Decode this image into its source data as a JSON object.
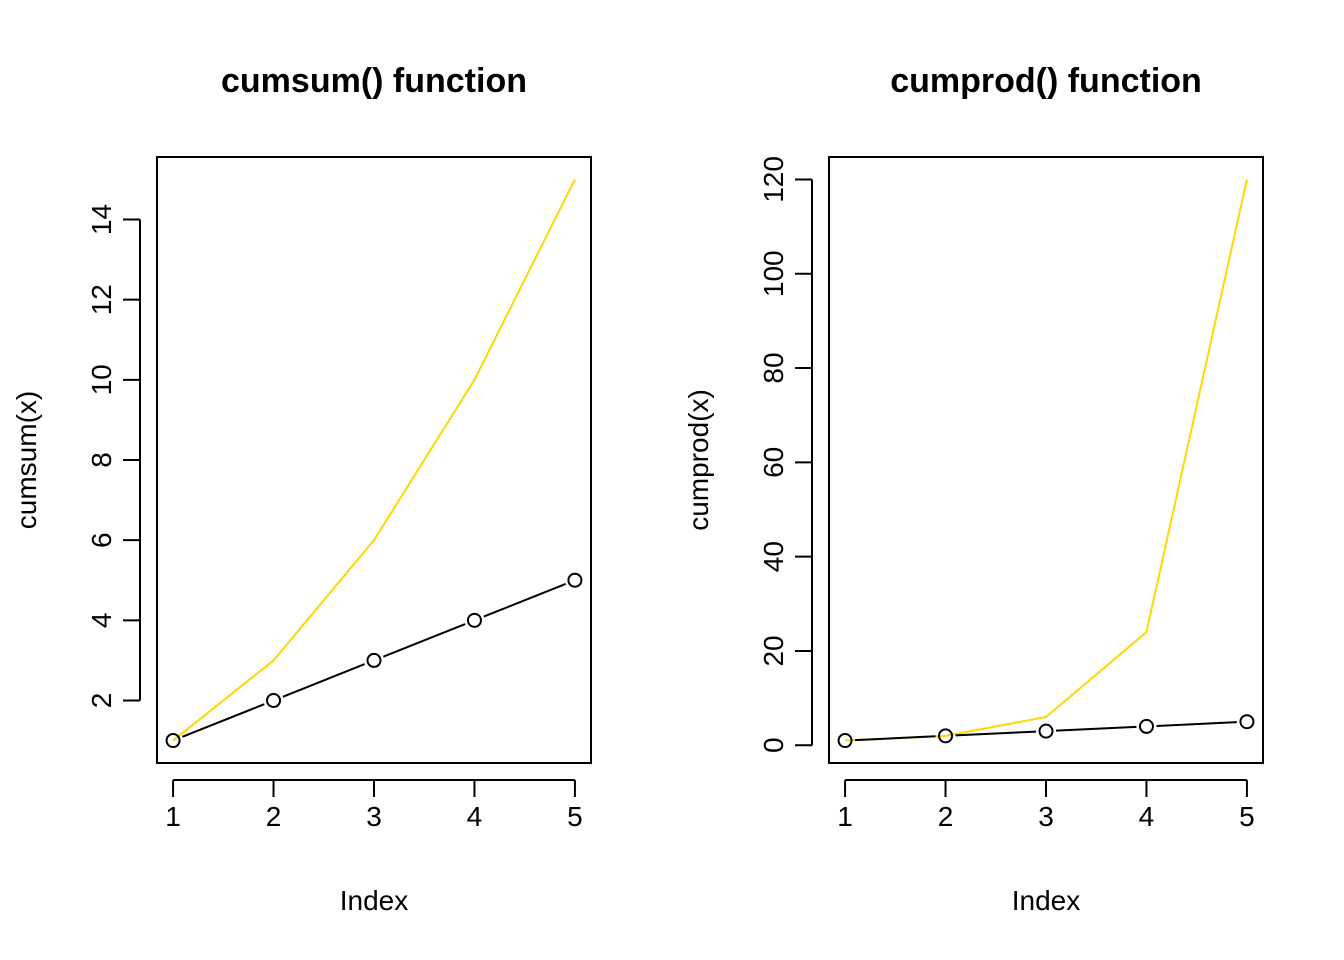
{
  "chart_data": [
    {
      "type": "line",
      "title": "cumsum() function",
      "xlabel": "Index",
      "ylabel": "cumsum(x)",
      "x": [
        1,
        2,
        3,
        4,
        5
      ],
      "xticks": [
        "1",
        "2",
        "3",
        "4",
        "5"
      ],
      "yticks": [
        "2",
        "4",
        "6",
        "8",
        "10",
        "12",
        "14"
      ],
      "ylim": [
        0.44,
        15.56
      ],
      "series": [
        {
          "values": [
            1,
            3,
            6,
            10,
            15
          ],
          "color": "#FFD700",
          "style": "line"
        },
        {
          "values": [
            1,
            2,
            3,
            4,
            5
          ],
          "color": "#000000",
          "style": "line-with-open-circles"
        }
      ]
    },
    {
      "type": "line",
      "title": "cumprod() function",
      "xlabel": "Index",
      "ylabel": "cumprod(x)",
      "x": [
        1,
        2,
        3,
        4,
        5
      ],
      "xticks": [
        "1",
        "2",
        "3",
        "4",
        "5"
      ],
      "yticks": [
        "0",
        "20",
        "40",
        "60",
        "80",
        "100",
        "120"
      ],
      "ylim": [
        -3.76,
        124.76
      ],
      "series": [
        {
          "values": [
            1,
            2,
            6,
            24,
            120
          ],
          "color": "#FFD700",
          "style": "line"
        },
        {
          "values": [
            1,
            2,
            3,
            4,
            5
          ],
          "color": "#000000",
          "style": "line-with-open-circles"
        }
      ]
    }
  ]
}
